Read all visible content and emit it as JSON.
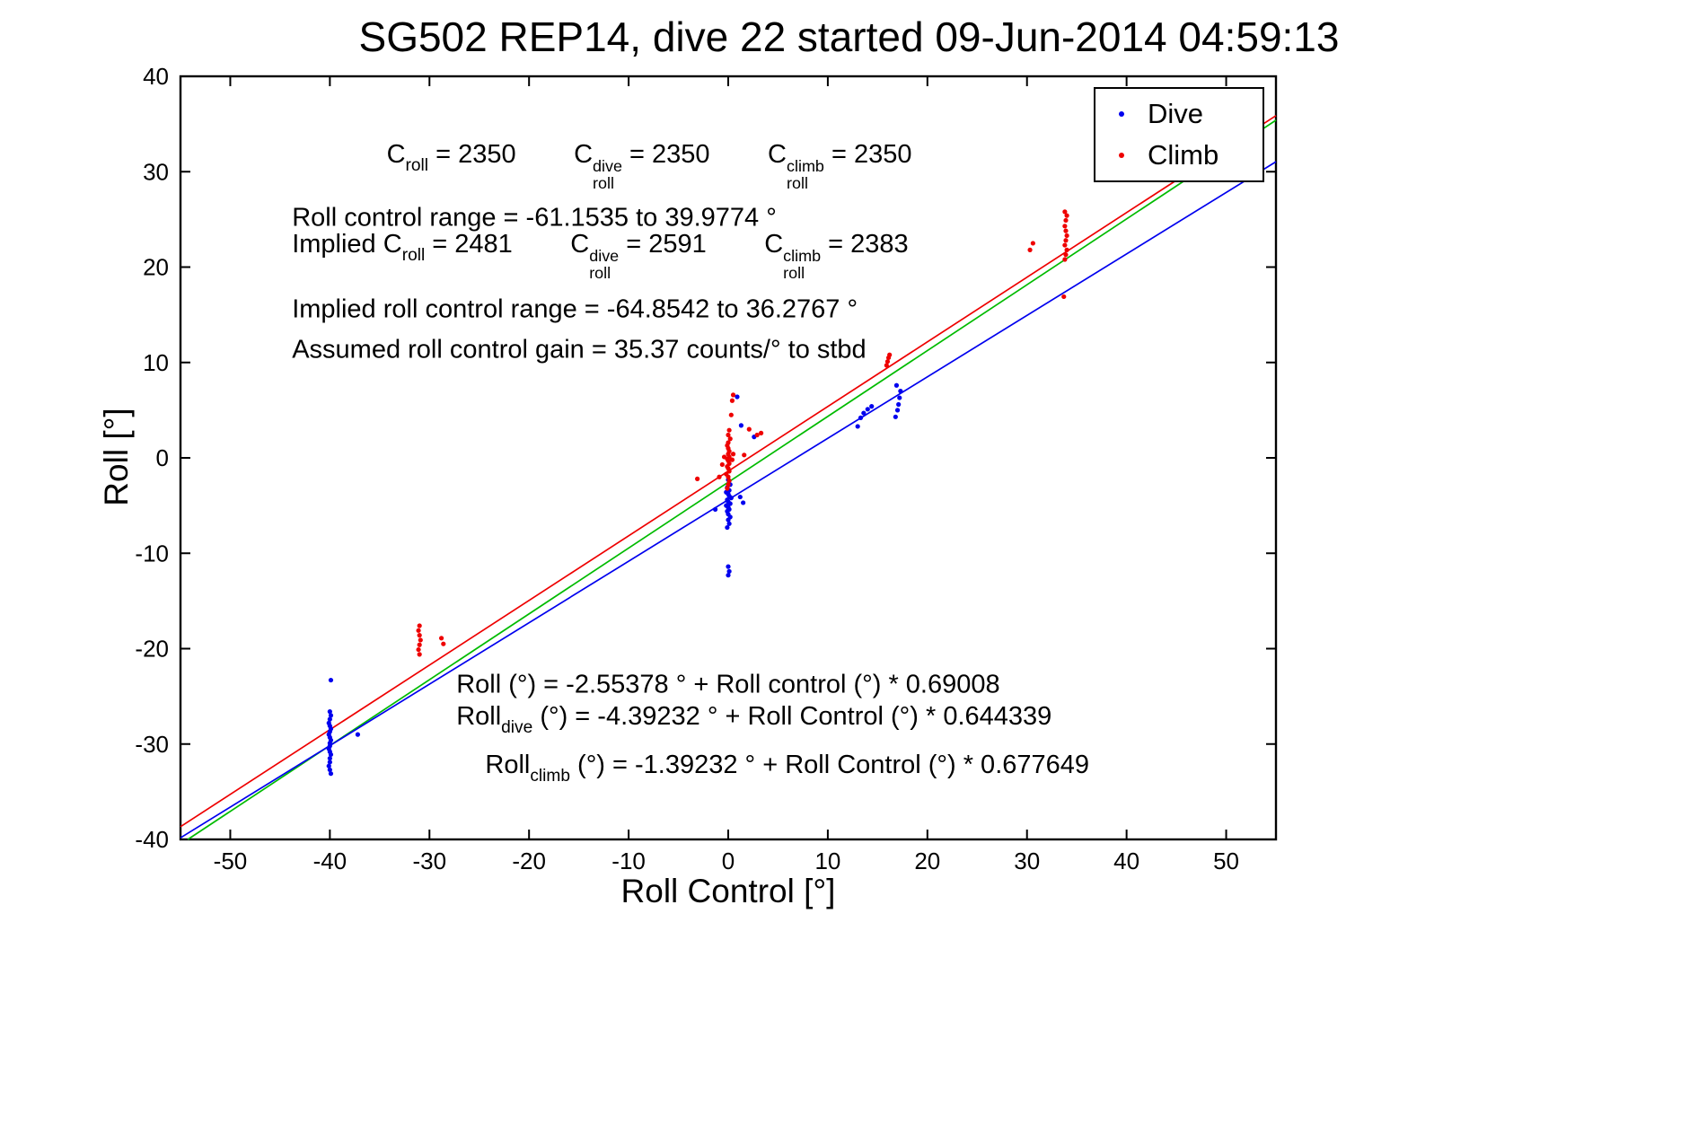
{
  "chart_data": {
    "type": "scatter",
    "title": "SG502 REP14, dive 22 started 09-Jun-2014 04:59:13",
    "xlabel": "Roll Control [°]",
    "ylabel": "Roll [°]",
    "xlim": [
      -55,
      55
    ],
    "ylim": [
      -40,
      40
    ],
    "xticks": [
      -50,
      -40,
      -30,
      -20,
      -10,
      0,
      10,
      20,
      30,
      40,
      50
    ],
    "yticks": [
      -40,
      -30,
      -20,
      -10,
      0,
      10,
      20,
      30,
      40
    ],
    "grid": false,
    "legend": {
      "position": "top-right",
      "entries": [
        {
          "label": "Dive",
          "color": "#0000ee"
        },
        {
          "label": "Climb",
          "color": "#ee0000"
        }
      ]
    },
    "series": [
      {
        "name": "Dive",
        "color": "#0000ee",
        "marker": "dot",
        "points": [
          [
            -39.9,
            -23.3
          ],
          [
            -40,
            -26.6
          ],
          [
            -39.9,
            -27.0
          ],
          [
            -40,
            -27.4
          ],
          [
            -40.1,
            -27.8
          ],
          [
            -40,
            -28.1
          ],
          [
            -39.9,
            -28.4
          ],
          [
            -40,
            -28.7
          ],
          [
            -40.1,
            -29.0
          ],
          [
            -40,
            -29.3
          ],
          [
            -39.9,
            -29.6
          ],
          [
            -40,
            -29.9
          ],
          [
            -40,
            -30.2
          ],
          [
            -40.1,
            -30.5
          ],
          [
            -40,
            -30.8
          ],
          [
            -39.9,
            -31.1
          ],
          [
            -40,
            -31.5
          ],
          [
            -40,
            -31.9
          ],
          [
            -40.1,
            -32.3
          ],
          [
            -40,
            -32.7
          ],
          [
            -39.9,
            -33.1
          ],
          [
            -37.2,
            -29.0
          ],
          [
            0,
            -2.3
          ],
          [
            0.2,
            -2.8
          ],
          [
            -0.1,
            -3.1
          ],
          [
            0.1,
            -3.4
          ],
          [
            -0.2,
            -3.6
          ],
          [
            0,
            -3.8
          ],
          [
            0.1,
            -4.0
          ],
          [
            0.3,
            -4.2
          ],
          [
            -0.1,
            -4.4
          ],
          [
            0,
            -4.6
          ],
          [
            0.2,
            -4.8
          ],
          [
            -0.2,
            -5.0
          ],
          [
            0,
            -5.2
          ],
          [
            0.1,
            -5.4
          ],
          [
            -0.1,
            -5.6
          ],
          [
            0,
            -5.9
          ],
          [
            0.2,
            -6.2
          ],
          [
            0,
            -6.5
          ],
          [
            0.1,
            -6.9
          ],
          [
            -0.1,
            -7.3
          ],
          [
            1.2,
            -4.1
          ],
          [
            1.5,
            -4.7
          ],
          [
            -1.3,
            -5.4
          ],
          [
            0,
            -11.4
          ],
          [
            0.1,
            -11.9
          ],
          [
            0,
            -12.3
          ],
          [
            0.9,
            6.4
          ],
          [
            1.3,
            3.4
          ],
          [
            2.6,
            2.2
          ],
          [
            13.0,
            3.3
          ],
          [
            13.3,
            4.2
          ],
          [
            13.6,
            4.7
          ],
          [
            14.0,
            5.1
          ],
          [
            14.4,
            5.4
          ],
          [
            16.8,
            4.3
          ],
          [
            17.0,
            5.0
          ],
          [
            17.1,
            5.6
          ],
          [
            17.2,
            6.3
          ],
          [
            17.3,
            7.0
          ],
          [
            16.9,
            7.6
          ]
        ]
      },
      {
        "name": "Climb",
        "color": "#ee0000",
        "marker": "dot",
        "points": [
          [
            -31.0,
            -17.6
          ],
          [
            -31.1,
            -18.1
          ],
          [
            -31,
            -18.6
          ],
          [
            -30.9,
            -19.1
          ],
          [
            -31,
            -19.6
          ],
          [
            -31.1,
            -20.1
          ],
          [
            -31,
            -20.6
          ],
          [
            -28.8,
            -18.9
          ],
          [
            -28.6,
            -19.5
          ],
          [
            0,
            0.4
          ],
          [
            0.1,
            0.1
          ],
          [
            -0.1,
            -0.1
          ],
          [
            0,
            -0.3
          ],
          [
            0.1,
            -0.6
          ],
          [
            -0.1,
            -0.9
          ],
          [
            0,
            -1.1
          ],
          [
            0.1,
            -1.4
          ],
          [
            -0.2,
            -1.7
          ],
          [
            0,
            -2.0
          ],
          [
            0.1,
            -2.4
          ],
          [
            0,
            -2.8
          ],
          [
            -0.1,
            -3.2
          ],
          [
            0.1,
            0.7
          ],
          [
            0,
            1.0
          ],
          [
            -0.1,
            1.3
          ],
          [
            0,
            1.6
          ],
          [
            0.2,
            2.0
          ],
          [
            0,
            2.4
          ],
          [
            0.1,
            2.9
          ],
          [
            -0.4,
            0.1
          ],
          [
            0.4,
            -0.2
          ],
          [
            0.5,
            0.4
          ],
          [
            -0.6,
            -0.7
          ],
          [
            -0.9,
            -2.0
          ],
          [
            0.3,
            4.5
          ],
          [
            0.4,
            6.0
          ],
          [
            0.5,
            6.6
          ],
          [
            -3.1,
            -2.2
          ],
          [
            1.6,
            0.3
          ],
          [
            2.9,
            2.4
          ],
          [
            3.3,
            2.6
          ],
          [
            2.1,
            3.0
          ],
          [
            15.9,
            9.7
          ],
          [
            16.0,
            10.1
          ],
          [
            16.1,
            10.5
          ],
          [
            16.2,
            10.8
          ],
          [
            30.3,
            21.8
          ],
          [
            30.6,
            22.5
          ],
          [
            33.7,
            16.9
          ],
          [
            33.8,
            20.8
          ],
          [
            33.9,
            21.3
          ],
          [
            34.0,
            21.8
          ],
          [
            33.8,
            22.3
          ],
          [
            33.9,
            22.8
          ],
          [
            34.0,
            23.3
          ],
          [
            33.9,
            23.8
          ],
          [
            33.8,
            24.3
          ],
          [
            33.9,
            24.9
          ],
          [
            34.0,
            25.4
          ],
          [
            33.8,
            25.8
          ]
        ]
      }
    ],
    "lines": [
      {
        "name": "climb-fit",
        "color": "#ee0000",
        "intercept": -1.39232,
        "slope": 0.677649
      },
      {
        "name": "all-fit",
        "color": "#00bb00",
        "intercept": -2.55378,
        "slope": 0.69008
      },
      {
        "name": "dive-fit",
        "color": "#0000ee",
        "intercept": -4.39232,
        "slope": 0.644339
      }
    ],
    "annotations": [
      {
        "x": -34.3,
        "y": 30.6,
        "parts": [
          {
            "t": "C"
          },
          {
            "sub": "roll"
          },
          {
            "t": " = 2350        "
          },
          {
            "t": "C"
          },
          {
            "sup": "dive",
            "sub": "roll"
          },
          {
            "t": " = 2350        "
          },
          {
            "t": "C"
          },
          {
            "sup": "climb",
            "sub": "roll"
          },
          {
            "t": " = 2350"
          }
        ]
      },
      {
        "x": -43.8,
        "y": 25.1,
        "parts": [
          {
            "t": "Roll control range = -61.1535 to 39.9774 °"
          }
        ]
      },
      {
        "x": -43.8,
        "y": 21.2,
        "parts": [
          {
            "t": "Implied C"
          },
          {
            "sub": "roll"
          },
          {
            "t": " = 2481        "
          },
          {
            "t": "C"
          },
          {
            "sup": "dive",
            "sub": "roll"
          },
          {
            "t": " = 2591        "
          },
          {
            "t": "C"
          },
          {
            "sup": "climb",
            "sub": "roll"
          },
          {
            "t": " = 2383"
          }
        ]
      },
      {
        "x": -43.8,
        "y": 15.5,
        "parts": [
          {
            "t": "Implied roll control range = -64.8542 to 36.2767 °"
          }
        ]
      },
      {
        "x": -43.8,
        "y": 11.3,
        "parts": [
          {
            "t": "Assumed roll control gain = 35.37 counts/° to stbd"
          }
        ]
      },
      {
        "x": -27.3,
        "y": -23.8,
        "parts": [
          {
            "t": "Roll (°) = -2.55378 ° + Roll control (°) * 0.69008"
          }
        ]
      },
      {
        "x": -27.3,
        "y": -27.5,
        "parts": [
          {
            "t": "Roll"
          },
          {
            "sub": "dive"
          },
          {
            "t": " (°) = -4.39232 ° + Roll Control (°) * 0.644339"
          }
        ]
      },
      {
        "x": -24.4,
        "y": -32.6,
        "parts": [
          {
            "t": "Roll"
          },
          {
            "sub": "climb"
          },
          {
            "t": " (°) = -1.39232 ° + Roll Control (°) * 0.677649"
          }
        ]
      }
    ]
  }
}
